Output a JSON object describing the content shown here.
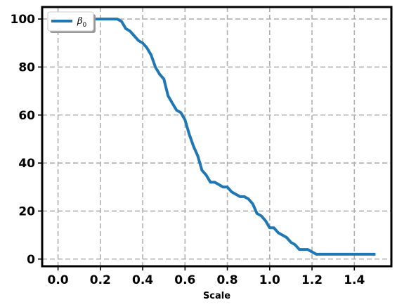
{
  "chart_data": {
    "type": "line",
    "title": "",
    "xlabel": "Scale",
    "ylabel": "",
    "xlim": [
      -0.075,
      1.575
    ],
    "ylim": [
      -3,
      105
    ],
    "x_ticks": [
      0.0,
      0.2,
      0.4,
      0.6,
      0.8,
      1.0,
      1.2,
      1.4
    ],
    "x_tick_labels": [
      "0.0",
      "0.2",
      "0.4",
      "0.6",
      "0.8",
      "1.0",
      "1.2",
      "1.4"
    ],
    "y_ticks": [
      0,
      20,
      40,
      60,
      80,
      100
    ],
    "y_tick_labels": [
      "0",
      "20",
      "40",
      "60",
      "80",
      "100"
    ],
    "grid": true,
    "legend_position": "top-left",
    "series": [
      {
        "name": "β0",
        "legend_label_main": "β",
        "legend_label_sub": "0",
        "color": "#1f77b4",
        "x": [
          0.0,
          0.28,
          0.3,
          0.32,
          0.34,
          0.36,
          0.38,
          0.4,
          0.42,
          0.44,
          0.46,
          0.48,
          0.5,
          0.52,
          0.54,
          0.56,
          0.58,
          0.6,
          0.62,
          0.64,
          0.66,
          0.68,
          0.7,
          0.72,
          0.74,
          0.76,
          0.78,
          0.8,
          0.82,
          0.84,
          0.86,
          0.88,
          0.9,
          0.92,
          0.94,
          0.96,
          0.98,
          1.0,
          1.02,
          1.04,
          1.06,
          1.08,
          1.1,
          1.12,
          1.14,
          1.16,
          1.18,
          1.2,
          1.22,
          1.5
        ],
        "y": [
          100,
          100,
          99,
          96,
          95,
          93,
          91,
          90,
          88,
          85,
          80,
          77,
          75,
          68,
          65,
          62,
          61,
          58,
          52,
          47,
          43,
          37,
          35,
          32,
          32,
          31,
          30,
          30,
          28,
          27,
          26,
          26,
          25,
          23,
          19,
          18,
          16,
          13,
          13,
          11,
          10,
          9,
          7,
          6,
          4,
          4,
          4,
          3,
          2,
          2
        ]
      }
    ]
  }
}
